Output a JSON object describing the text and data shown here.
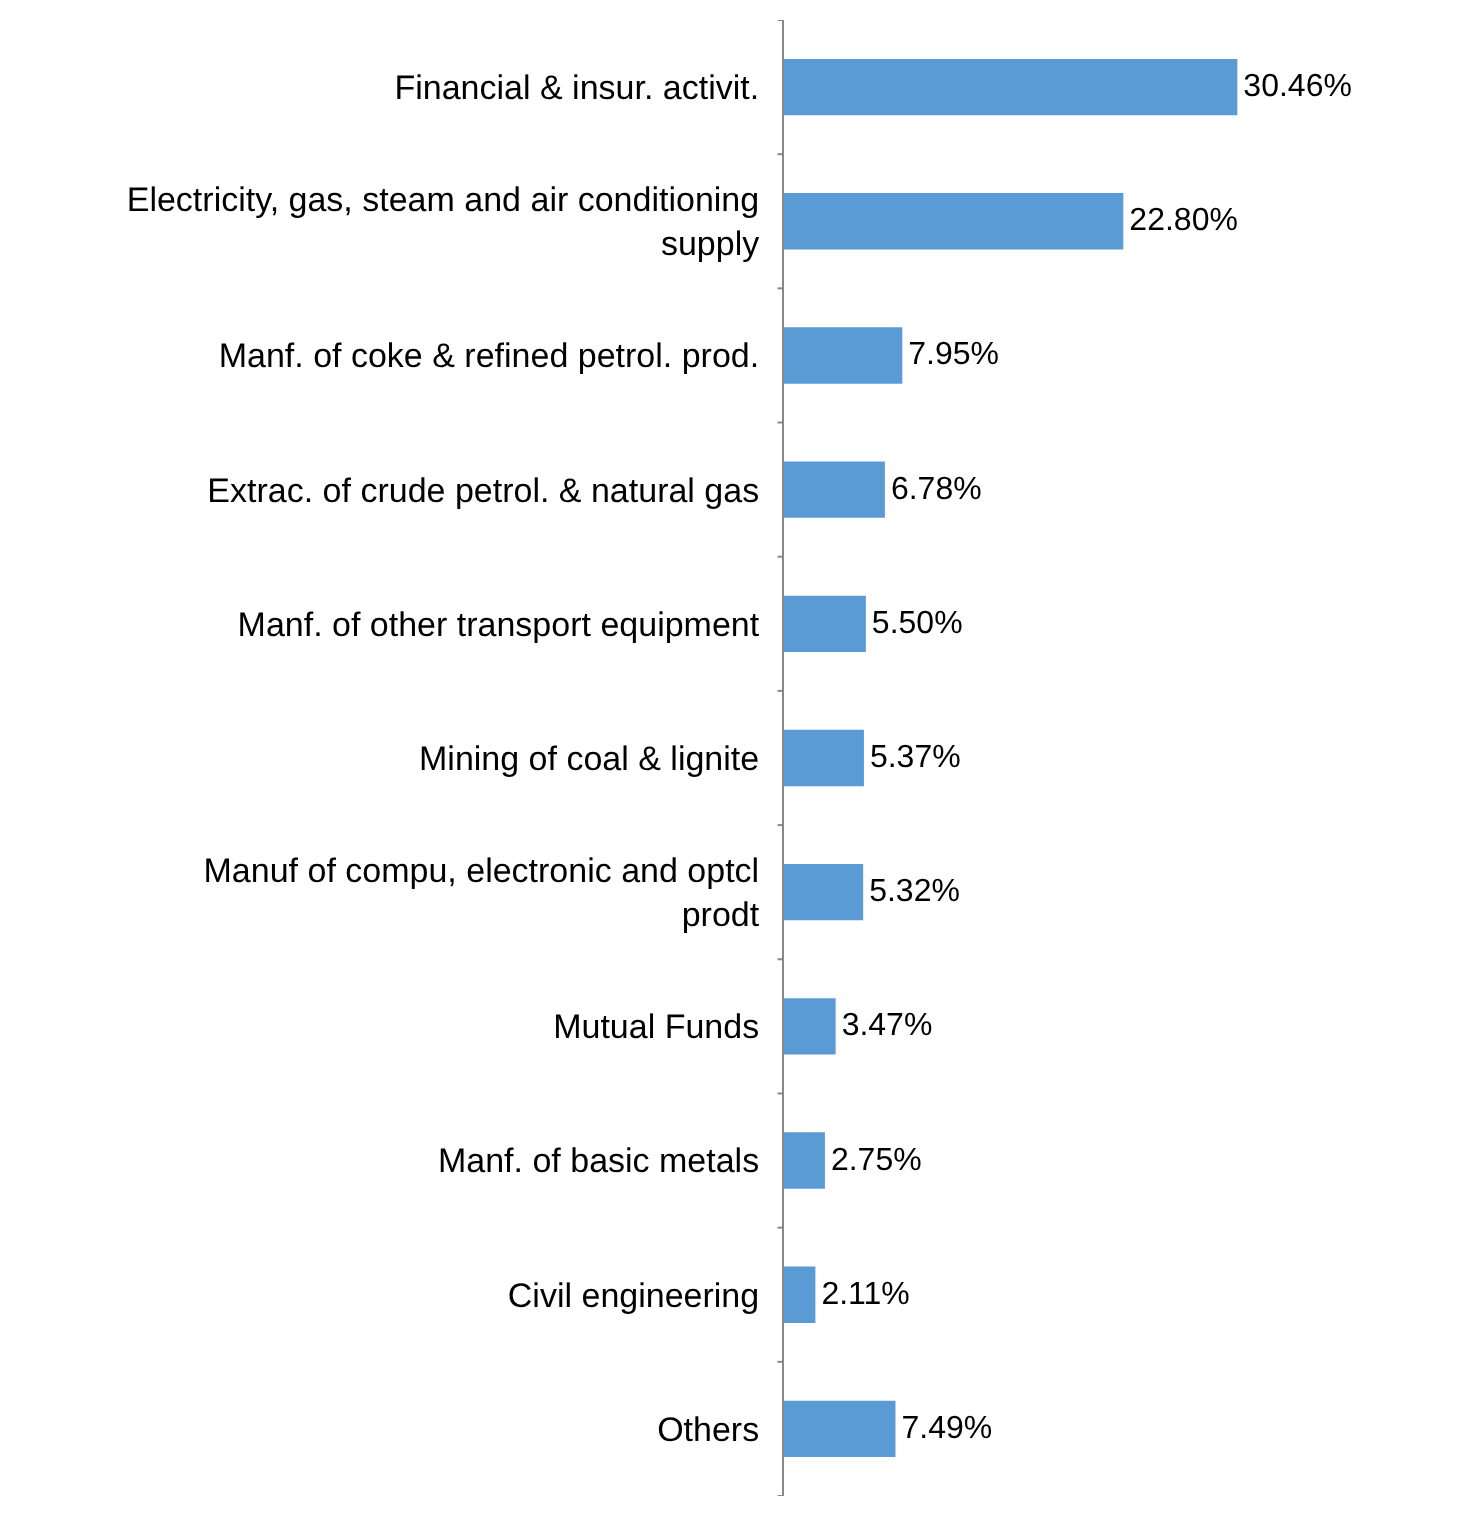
{
  "chart_data": {
    "type": "bar",
    "orientation": "horizontal",
    "categories": [
      "Financial & insur. activit.",
      "Electricity, gas, steam and air conditioning supply",
      "Manf. of coke & refined petrol. prod.",
      "Extrac. of crude petrol. & natural gas",
      "Manf. of other transport equipment",
      "Mining of coal & lignite",
      "Manuf of compu, electronic and optcl prodt",
      "Mutual Funds",
      "Manf. of basic metals",
      "Civil engineering",
      "Others"
    ],
    "values": [
      30.46,
      22.8,
      7.95,
      6.78,
      5.5,
      5.37,
      5.32,
      3.47,
      2.75,
      2.11,
      7.49
    ],
    "value_labels": [
      "30.46%",
      "22.80%",
      "7.95%",
      "6.78%",
      "5.50%",
      "5.37%",
      "5.32%",
      "3.47%",
      "2.75%",
      "2.11%",
      "7.49%"
    ],
    "color": "#5b9bd5",
    "legend": false
  }
}
